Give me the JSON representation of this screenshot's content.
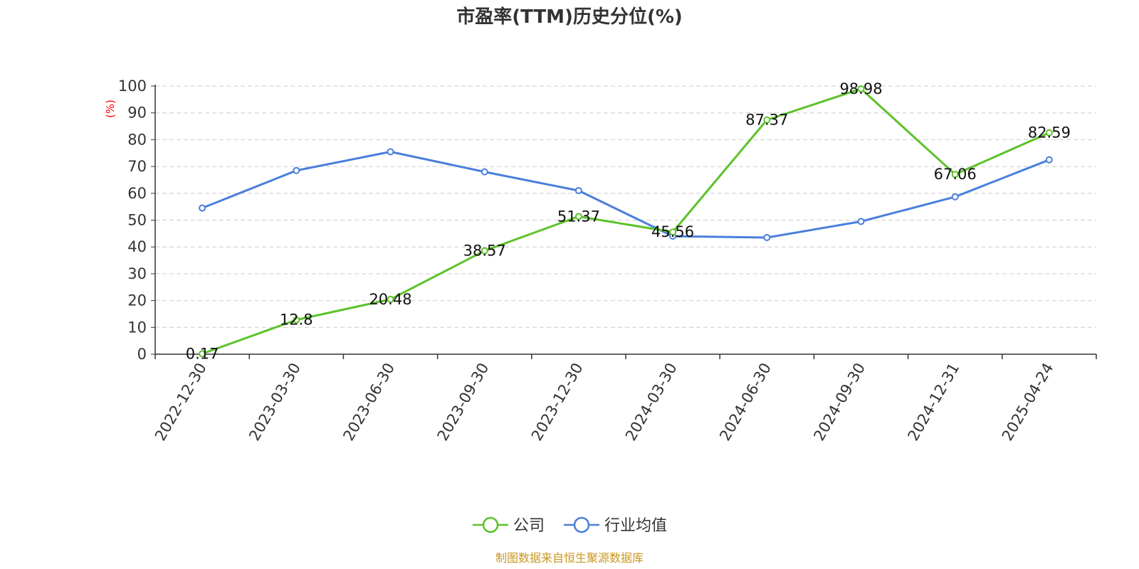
{
  "chart_data": {
    "type": "line",
    "title": "市盈率(TTM)历史分位(%)",
    "ylabel": "(%)",
    "xlabel": "",
    "ylim": [
      0,
      100
    ],
    "yticks": [
      0,
      10,
      20,
      30,
      40,
      50,
      60,
      70,
      80,
      90,
      100
    ],
    "categories": [
      "2022-12-30",
      "2023-03-30",
      "2023-06-30",
      "2023-09-30",
      "2023-12-30",
      "2024-03-30",
      "2024-06-30",
      "2024-09-30",
      "2024-12-31",
      "2025-04-24"
    ],
    "grid": true,
    "legend_position": "bottom-center",
    "series": [
      {
        "name": "公司",
        "color": "#5cc22a",
        "show_labels": true,
        "values": [
          0.17,
          12.8,
          20.48,
          38.57,
          51.37,
          45.56,
          87.37,
          98.98,
          67.06,
          82.59
        ],
        "labels": [
          "0.17",
          "12.8",
          "20.48",
          "38.57",
          "51.37",
          "45.56",
          "87.37",
          "98.98",
          "67.06",
          "82.59"
        ]
      },
      {
        "name": "行业均值",
        "color": "#4a7fdc",
        "show_labels": false,
        "values": [
          54.5,
          68.5,
          75.5,
          68,
          61,
          44,
          43.5,
          49.5,
          58.7,
          72.5
        ]
      }
    ],
    "unit_color": "#ff0000",
    "source": "制图数据来自恒生聚源数据库",
    "source_color": "#c8961e"
  }
}
